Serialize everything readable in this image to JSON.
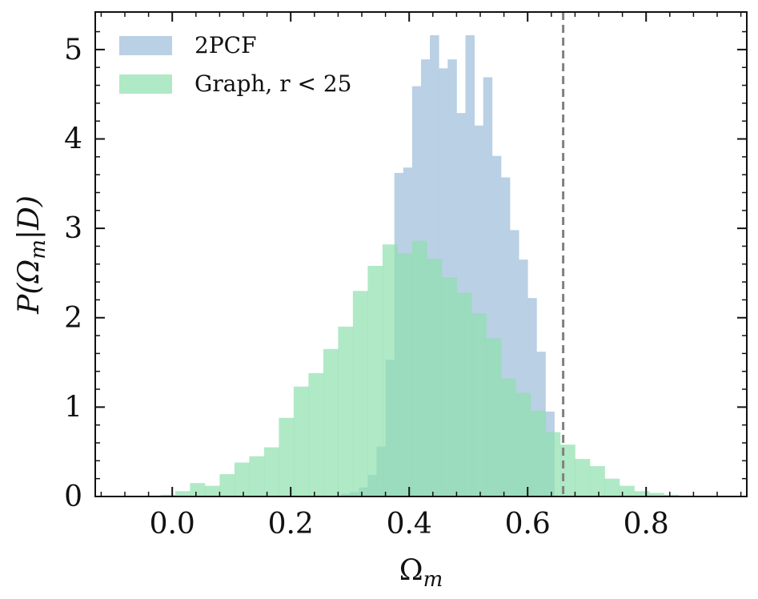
{
  "chart_data": {
    "type": "bar",
    "xlabel_main": "Ω",
    "xlabel_sub": "m",
    "ylabel_pre": "P(Ω",
    "ylabel_sub": "m",
    "ylabel_post": "|D)",
    "xlim": [
      -0.13,
      0.97
    ],
    "ylim": [
      0,
      5.42
    ],
    "xticks": [
      0.0,
      0.2,
      0.4,
      0.6,
      0.8
    ],
    "xtick_labels": [
      "0.0",
      "0.2",
      "0.4",
      "0.6",
      "0.8"
    ],
    "yticks": [
      0,
      1,
      2,
      3,
      4,
      5
    ],
    "ytick_labels": [
      "0",
      "1",
      "2",
      "3",
      "4",
      "5"
    ],
    "legend_position": "top-left",
    "reference_line": {
      "x": 0.66,
      "style": "dashed",
      "color": "#808080"
    },
    "series": [
      {
        "name": "2PCF",
        "color": "#b6cde3",
        "bin_edges": [
          0.285,
          0.3,
          0.315,
          0.33,
          0.345,
          0.36,
          0.375,
          0.39,
          0.405,
          0.42,
          0.435,
          0.45,
          0.465,
          0.48,
          0.495,
          0.51,
          0.525,
          0.54,
          0.555,
          0.57,
          0.585,
          0.6,
          0.615,
          0.63,
          0.645
        ],
        "values": [
          0.03,
          0.05,
          0.1,
          0.24,
          0.56,
          1.53,
          3.62,
          3.68,
          4.59,
          4.89,
          5.16,
          4.79,
          4.89,
          4.29,
          5.16,
          4.15,
          4.69,
          3.81,
          3.57,
          2.98,
          2.65,
          2.22,
          1.62,
          0.95
        ]
      },
      {
        "name": "Graph, r < 25",
        "color": "#8fdfae",
        "bin_edges": [
          -0.045,
          -0.02,
          0.005,
          0.03,
          0.055,
          0.08,
          0.105,
          0.13,
          0.155,
          0.18,
          0.205,
          0.23,
          0.255,
          0.28,
          0.305,
          0.33,
          0.355,
          0.38,
          0.405,
          0.43,
          0.455,
          0.48,
          0.505,
          0.53,
          0.555,
          0.58,
          0.605,
          0.63,
          0.655,
          0.68,
          0.705,
          0.73,
          0.755,
          0.78,
          0.805,
          0.83,
          0.855,
          0.88,
          0.905
        ],
        "values": [
          0.01,
          0.02,
          0.06,
          0.15,
          0.12,
          0.25,
          0.38,
          0.45,
          0.55,
          0.88,
          1.23,
          1.38,
          1.65,
          1.9,
          2.3,
          2.58,
          2.82,
          2.72,
          2.86,
          2.66,
          2.45,
          2.28,
          2.05,
          1.77,
          1.32,
          1.16,
          0.96,
          0.72,
          0.58,
          0.42,
          0.34,
          0.2,
          0.12,
          0.06,
          0.04,
          0.02,
          0.01,
          0.005
        ]
      }
    ]
  }
}
